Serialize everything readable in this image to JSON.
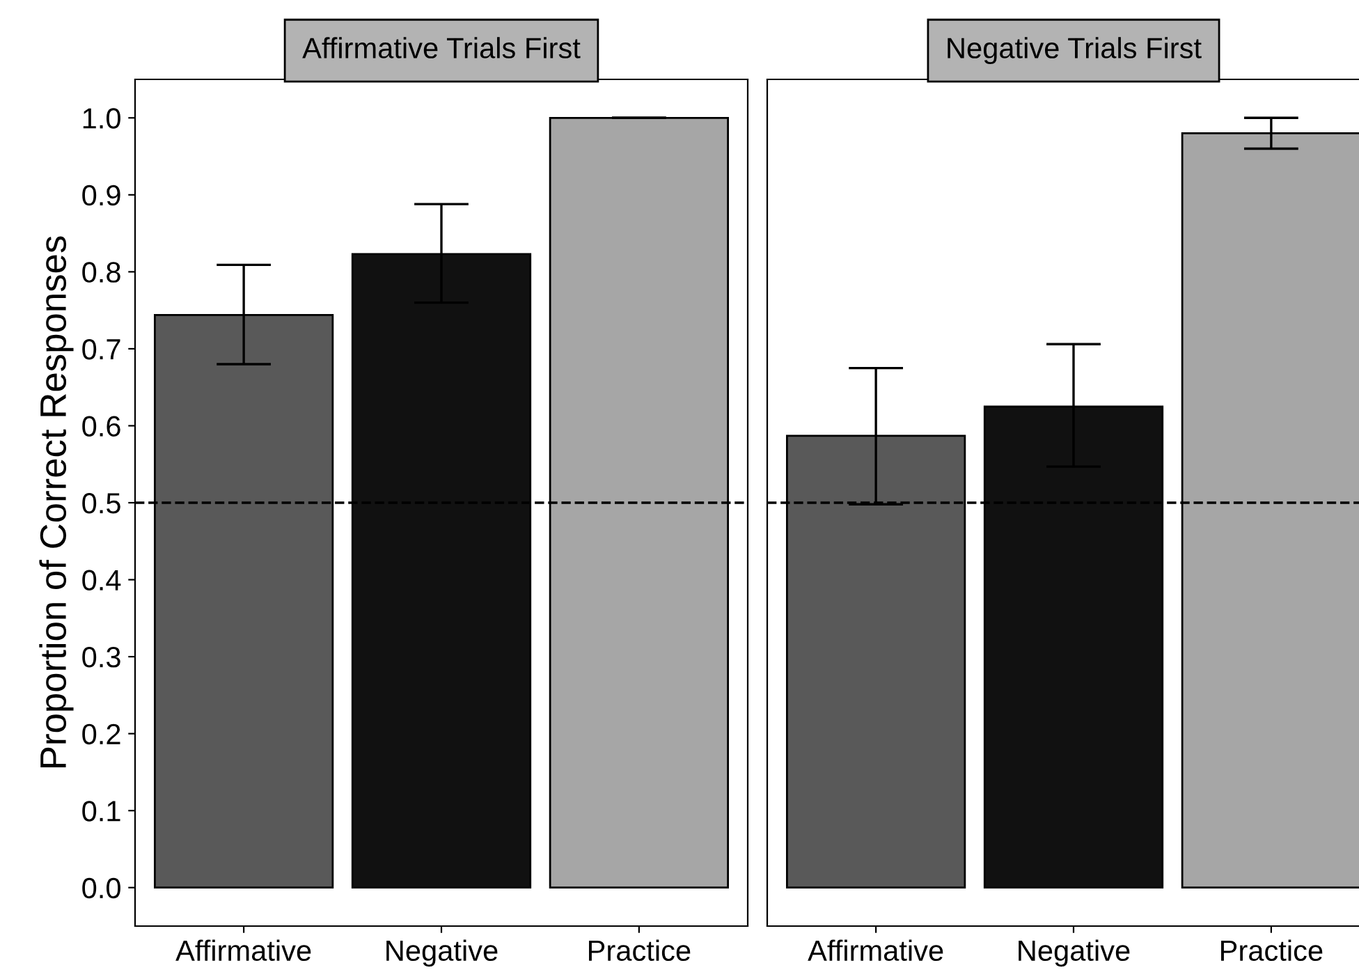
{
  "chart_data": [
    {
      "type": "bar",
      "title": "Affirmative Trials First",
      "ylabel": "Proportion of Correct Responses",
      "categories": [
        "Affirmative",
        "Negative",
        "Practice"
      ],
      "values": [
        0.744,
        0.823,
        1.0
      ],
      "colors": [
        "#595959",
        "#111111",
        "#a6a6a6"
      ],
      "errors": [
        [
          0.68,
          0.809
        ],
        [
          0.76,
          0.888
        ],
        [
          1.0,
          1.0
        ]
      ],
      "ylim": [
        -0.05,
        1.05
      ],
      "yticks": [
        {
          "value": 0,
          "label": "0.0"
        },
        0.1,
        0.2,
        0.3,
        0.4,
        0.5,
        0.6,
        0.7,
        0.8,
        0.9,
        {
          "value": 1,
          "label": "1.0"
        }
      ],
      "ref_lines": [
        {
          "axis": "y",
          "value": 0.5,
          "line_style": "dashed",
          "color": "#000000"
        }
      ],
      "grid": false
    },
    {
      "type": "bar",
      "title": "Negative Trials First",
      "categories": [
        "Affirmative",
        "Negative",
        "Practice"
      ],
      "values": [
        0.587,
        0.625,
        0.98
      ],
      "colors": [
        "#595959",
        "#111111",
        "#a6a6a6"
      ],
      "errors": [
        [
          0.498,
          0.675
        ],
        [
          0.547,
          0.706
        ],
        [
          0.96,
          1.0
        ]
      ],
      "ylim": [
        -0.05,
        1.05
      ],
      "tick_labels": "x",
      "ref_lines": [
        {
          "axis": "y",
          "value": 0.5,
          "line_style": "dashed",
          "color": "#000000"
        }
      ],
      "grid": false
    }
  ]
}
